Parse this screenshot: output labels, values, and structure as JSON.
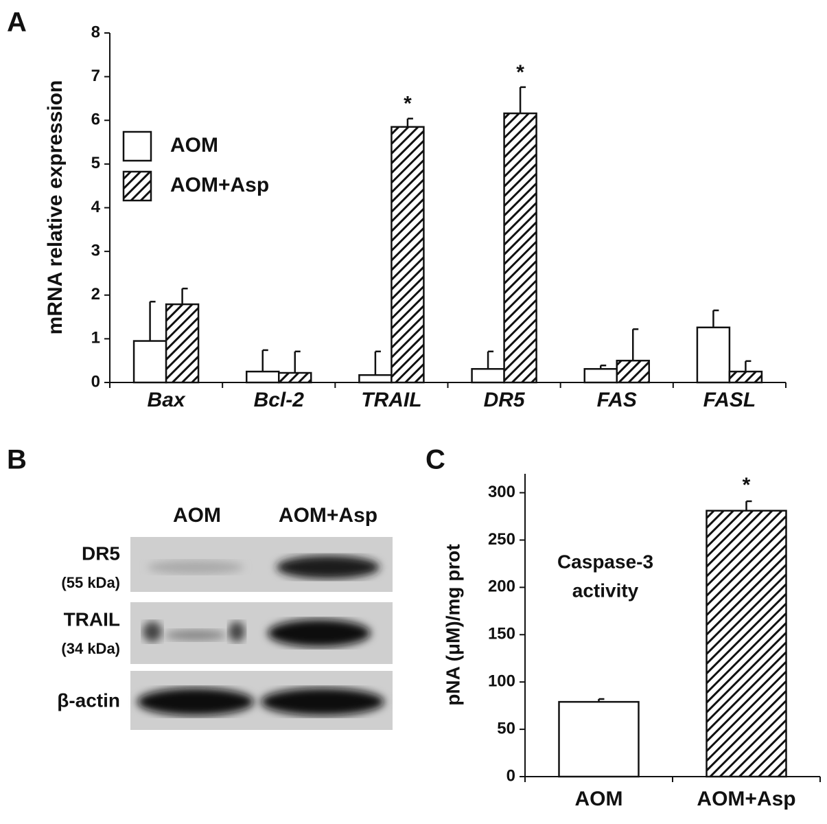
{
  "chart_data": [
    {
      "type": "bar",
      "panel_label": "A",
      "y_label": "mRNA relative expression",
      "categories": [
        "Bax",
        "Bcl-2",
        "TRAIL",
        "DR5",
        "FAS",
        "FASL"
      ],
      "series": [
        {
          "name": "AOM",
          "color": "#ffffff",
          "pattern": "solid",
          "values": [
            0.95,
            0.25,
            0.17,
            0.31,
            0.31,
            1.26
          ],
          "errors": [
            0.9,
            0.49,
            0.54,
            0.4,
            0.08,
            0.39
          ]
        },
        {
          "name": "AOM+Asp",
          "color": "#ffffff",
          "pattern": "diagonal",
          "values": [
            1.79,
            0.22,
            5.85,
            6.16,
            0.5,
            0.25
          ],
          "errors": [
            0.36,
            0.49,
            0.19,
            0.6,
            0.72,
            0.24
          ]
        }
      ],
      "annotations": [
        {
          "text": "*",
          "category": "TRAIL",
          "series": "AOM+Asp"
        },
        {
          "text": "*",
          "category": "DR5",
          "series": "AOM+Asp"
        }
      ],
      "ylim": [
        0,
        8
      ],
      "yticks": [
        0,
        1,
        2,
        3,
        4,
        5,
        6,
        7,
        8
      ],
      "legend": "upper-left",
      "grid": false
    },
    {
      "type": "bar",
      "panel_label": "C",
      "y_label": "pNA (μM)/mg prot",
      "note_lines": [
        "Caspase-3",
        "activity"
      ],
      "categories": [
        "AOM",
        "AOM+Asp"
      ],
      "values": [
        79,
        281
      ],
      "errors": [
        3,
        10
      ],
      "patterns": [
        "solid",
        "diagonal"
      ],
      "color": "#ffffff",
      "annotations": [
        {
          "text": "*",
          "category": "AOM+Asp"
        }
      ],
      "ylim": [
        0,
        320
      ],
      "yticks": [
        0,
        50,
        100,
        150,
        200,
        250,
        300
      ],
      "grid": false
    }
  ],
  "blot": {
    "panel_label": "B",
    "lanes": [
      "AOM",
      "AOM+Asp"
    ],
    "rows": [
      {
        "label": "DR5",
        "sublabel": "(55 kDa)"
      },
      {
        "label": "TRAIL",
        "sublabel": "(34 kDa)"
      },
      {
        "label": "β-actin"
      }
    ]
  }
}
